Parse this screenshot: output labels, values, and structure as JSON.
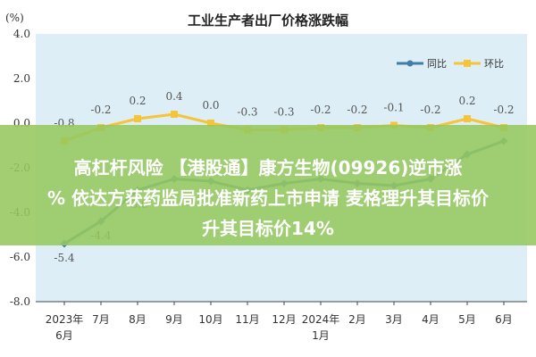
{
  "chart_data": {
    "type": "line",
    "title": "工业生产者出厂价格涨跌幅",
    "ylabel": "(%)",
    "ylim": [
      -8.0,
      4.0
    ],
    "yticks": [
      4.0,
      2.0,
      0.0,
      -2.0,
      -4.0,
      -6.0,
      -8.0
    ],
    "ytick_labels": [
      "4.0",
      "2.0",
      "0.0",
      "-2.0",
      "-4.0",
      "-6.0",
      "-8.0"
    ],
    "categories": [
      "2023年6月",
      "7月",
      "8月",
      "9月",
      "10月",
      "11月",
      "12月",
      "2024年1月",
      "2月",
      "3月",
      "4月",
      "5月",
      "6月"
    ],
    "xtick_labels": [
      [
        "2023年",
        "6月"
      ],
      [
        "7月"
      ],
      [
        "8月"
      ],
      [
        "9月"
      ],
      [
        "10月"
      ],
      [
        "11月"
      ],
      [
        "12月"
      ],
      [
        "2024年",
        "1月"
      ],
      [
        "2月"
      ],
      [
        "3月"
      ],
      [
        "4月"
      ],
      [
        "5月"
      ],
      [
        "6月"
      ]
    ],
    "series": [
      {
        "name": "同比",
        "color": "#3f7fa8",
        "values": [
          -5.4,
          -4.4,
          -3.0,
          -2.5,
          -2.6,
          -3.0,
          -2.7,
          -2.5,
          -2.7,
          -2.8,
          -2.5,
          -1.4,
          -0.8
        ],
        "value_labels": [
          "-5.4",
          "-4.4",
          "-3.0",
          "",
          "",
          "",
          "",
          "",
          "",
          "",
          "",
          "",
          ""
        ]
      },
      {
        "name": "环比",
        "color": "#f5c438",
        "values": [
          -0.8,
          -0.2,
          0.2,
          0.4,
          0.0,
          -0.3,
          -0.3,
          -0.2,
          -0.2,
          -0.1,
          -0.2,
          0.2,
          -0.2
        ],
        "value_labels": [
          "-0.8",
          "-0.2",
          "0.2",
          "0.4",
          "0.0",
          "-0.3",
          "-0.3",
          "-0.2",
          "-0.2",
          "-0.1",
          "-0.2",
          "0.2",
          "-0.2"
        ]
      }
    ],
    "legend_position": "top-right",
    "grid": false
  },
  "banner": {
    "line1": "高杠杆风险 【港股通】康方生物(09926)逆市涨",
    "line2": "% 依达方获药监局批准新药上市申请 麦格理升其目标价",
    "line3": "升其目标价14%"
  }
}
